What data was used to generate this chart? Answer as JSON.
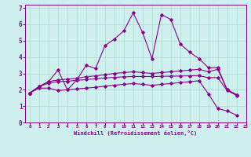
{
  "title": "",
  "xlabel": "Windchill (Refroidissement éolien,°C)",
  "bg_color": "#cff0ee",
  "grid_color": "#aaddcc",
  "line_color": "#880088",
  "xlim": [
    -0.5,
    23
  ],
  "ylim": [
    0,
    7.2
  ],
  "xticks": [
    0,
    1,
    2,
    3,
    4,
    5,
    6,
    7,
    8,
    9,
    10,
    11,
    12,
    13,
    14,
    15,
    16,
    17,
    18,
    19,
    20,
    21,
    22,
    23
  ],
  "yticks": [
    0,
    1,
    2,
    3,
    4,
    5,
    6,
    7
  ],
  "line1_x": [
    0,
    1,
    2,
    3,
    4,
    5,
    6,
    7,
    8,
    9,
    10,
    11,
    12,
    13,
    14,
    15,
    16,
    17,
    18,
    19,
    20,
    21,
    22
  ],
  "line1_y": [
    1.8,
    2.2,
    2.5,
    3.2,
    2.0,
    2.6,
    3.5,
    3.3,
    4.7,
    5.1,
    5.6,
    6.7,
    5.5,
    3.9,
    6.6,
    6.3,
    4.8,
    4.3,
    3.9,
    3.35,
    3.35,
    2.0,
    1.7
  ],
  "line2_x": [
    0,
    1,
    2,
    3,
    4,
    5,
    6,
    7,
    8,
    9,
    10,
    11,
    12,
    13,
    14,
    15,
    16,
    17,
    18,
    19,
    20,
    21,
    22
  ],
  "line2_y": [
    1.8,
    2.2,
    2.5,
    2.6,
    2.65,
    2.7,
    2.8,
    2.85,
    2.92,
    3.0,
    3.05,
    3.1,
    3.05,
    3.0,
    3.05,
    3.1,
    3.15,
    3.2,
    3.25,
    3.1,
    3.25,
    2.0,
    1.7
  ],
  "line3_x": [
    0,
    1,
    2,
    3,
    4,
    5,
    6,
    7,
    8,
    9,
    10,
    11,
    12,
    13,
    14,
    15,
    16,
    17,
    18,
    19,
    20,
    21,
    22
  ],
  "line3_y": [
    1.8,
    2.2,
    2.4,
    2.5,
    2.52,
    2.58,
    2.62,
    2.67,
    2.72,
    2.76,
    2.79,
    2.81,
    2.81,
    2.81,
    2.82,
    2.83,
    2.84,
    2.85,
    2.86,
    2.74,
    2.74,
    1.95,
    1.65
  ],
  "line4_x": [
    0,
    1,
    2,
    3,
    4,
    5,
    6,
    7,
    8,
    9,
    10,
    11,
    12,
    13,
    14,
    15,
    16,
    17,
    18,
    19,
    20,
    21,
    22
  ],
  "line4_y": [
    1.8,
    2.1,
    2.1,
    1.95,
    2.0,
    2.05,
    2.1,
    2.15,
    2.22,
    2.28,
    2.33,
    2.38,
    2.33,
    2.27,
    2.33,
    2.38,
    2.44,
    2.49,
    2.55,
    1.75,
    0.85,
    0.7,
    0.45
  ]
}
